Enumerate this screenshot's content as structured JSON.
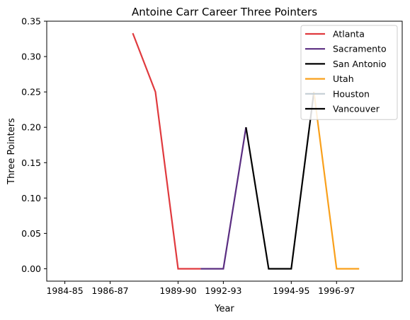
{
  "chart_data": {
    "type": "line",
    "title": "Antoine Carr Career Three Pointers",
    "xlabel": "Year",
    "ylabel": "Three Pointers",
    "x_tick_labels": [
      "1984-85",
      "1986-87",
      "1989-90",
      "1992-93",
      "1994-95",
      "1996-97"
    ],
    "x_tick_positions": [
      0,
      2,
      5,
      7,
      10,
      12
    ],
    "xlim": [
      -0.8,
      14.9
    ],
    "ylim": [
      -0.0175,
      0.35
    ],
    "y_ticks": [
      0.0,
      0.05,
      0.1,
      0.15,
      0.2,
      0.25,
      0.3,
      0.35
    ],
    "y_tick_labels": [
      "0.00",
      "0.05",
      "0.10",
      "0.15",
      "0.20",
      "0.25",
      "0.30",
      "0.35"
    ],
    "legend_position": "top-right",
    "series": [
      {
        "name": "Atlanta",
        "color": "#E03A3E",
        "x": [
          3,
          4,
          5,
          6
        ],
        "y": [
          0.333,
          0.25,
          0.0,
          0.0
        ]
      },
      {
        "name": "Sacramento",
        "color": "#5A2D81",
        "x": [
          6,
          7,
          8
        ],
        "y": [
          0.0,
          0.0,
          0.2
        ]
      },
      {
        "name": "San Antonio",
        "color": "#000000",
        "x": [
          8,
          9,
          10,
          11
        ],
        "y": [
          0.2,
          0.0,
          0.0,
          0.25
        ]
      },
      {
        "name": "Utah",
        "color": "#F9A01B",
        "x": [
          11,
          12,
          13
        ],
        "y": [
          0.25,
          0.0,
          0.0
        ]
      },
      {
        "name": "Houston",
        "color": "#C4CED4",
        "x": [],
        "y": []
      },
      {
        "name": "Vancouver",
        "color": "#000000",
        "x": [],
        "y": []
      }
    ]
  }
}
